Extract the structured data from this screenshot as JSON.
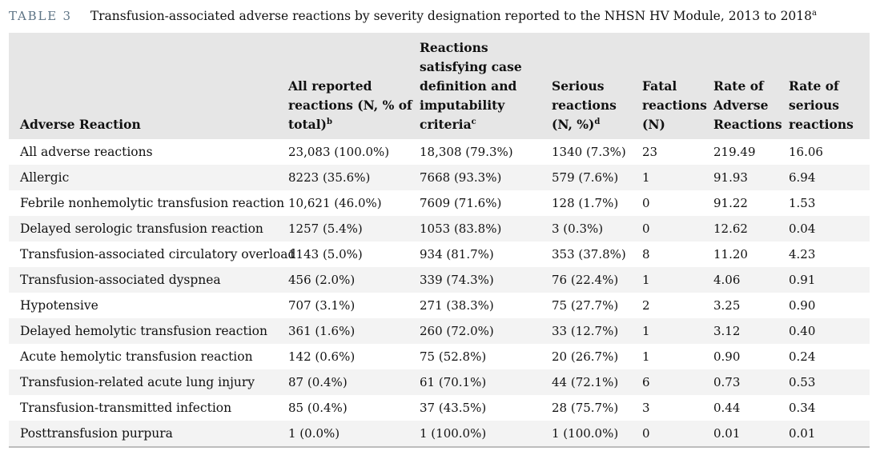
{
  "caption": {
    "label": "TABLE 3",
    "title": "Transfusion-associated adverse reactions by severity designation reported to the NHSN HV Module, 2013 to 2018",
    "title_sup": "a"
  },
  "table": {
    "headers": [
      {
        "text": "Adverse Reaction",
        "sup": ""
      },
      {
        "text": "All reported reactions (N, % of total)",
        "sup": "b"
      },
      {
        "text": "Reactions satisfying case definition and imputability criteria",
        "sup": "c"
      },
      {
        "text": "Serious reactions (N, %)",
        "sup": "d"
      },
      {
        "text": "Fatal reactions (N)",
        "sup": ""
      },
      {
        "text": "Rate of Adverse Reactions",
        "sup": ""
      },
      {
        "text": "Rate of serious reactions",
        "sup": ""
      }
    ],
    "rows": [
      [
        "All adverse reactions",
        "23,083 (100.0%)",
        "18,308 (79.3%)",
        "1340 (7.3%)",
        "23",
        "219.49",
        "16.06"
      ],
      [
        "Allergic",
        "8223 (35.6%)",
        "7668 (93.3%)",
        "579 (7.6%)",
        "1",
        "91.93",
        "6.94"
      ],
      [
        "Febrile nonhemolytic transfusion reaction",
        "10,621 (46.0%)",
        "7609 (71.6%)",
        "128 (1.7%)",
        "0",
        "91.22",
        "1.53"
      ],
      [
        "Delayed serologic transfusion reaction",
        "1257 (5.4%)",
        "1053 (83.8%)",
        "3 (0.3%)",
        "0",
        "12.62",
        "0.04"
      ],
      [
        "Transfusion-associated circulatory overload",
        "1143 (5.0%)",
        "934 (81.7%)",
        "353 (37.8%)",
        "8",
        "11.20",
        "4.23"
      ],
      [
        "Transfusion-associated dyspnea",
        "456 (2.0%)",
        "339 (74.3%)",
        "76 (22.4%)",
        "1",
        "4.06",
        "0.91"
      ],
      [
        "Hypotensive",
        "707 (3.1%)",
        "271 (38.3%)",
        "75 (27.7%)",
        "2",
        "3.25",
        "0.90"
      ],
      [
        "Delayed hemolytic transfusion reaction",
        "361 (1.6%)",
        "260 (72.0%)",
        "33 (12.7%)",
        "1",
        "3.12",
        "0.40"
      ],
      [
        "Acute hemolytic transfusion reaction",
        "142 (0.6%)",
        "75 (52.8%)",
        "20 (26.7%)",
        "1",
        "0.90",
        "0.24"
      ],
      [
        "Transfusion-related acute lung injury",
        "87 (0.4%)",
        "61 (70.1%)",
        "44 (72.1%)",
        "6",
        "0.73",
        "0.53"
      ],
      [
        "Transfusion-transmitted infection",
        "85 (0.4%)",
        "37 (43.5%)",
        "28 (75.7%)",
        "3",
        "0.44",
        "0.34"
      ],
      [
        "Posttransfusion purpura",
        "1 (0.0%)",
        "1 (100.0%)",
        "1 (100.0%)",
        "0",
        "0.01",
        "0.01"
      ]
    ]
  }
}
